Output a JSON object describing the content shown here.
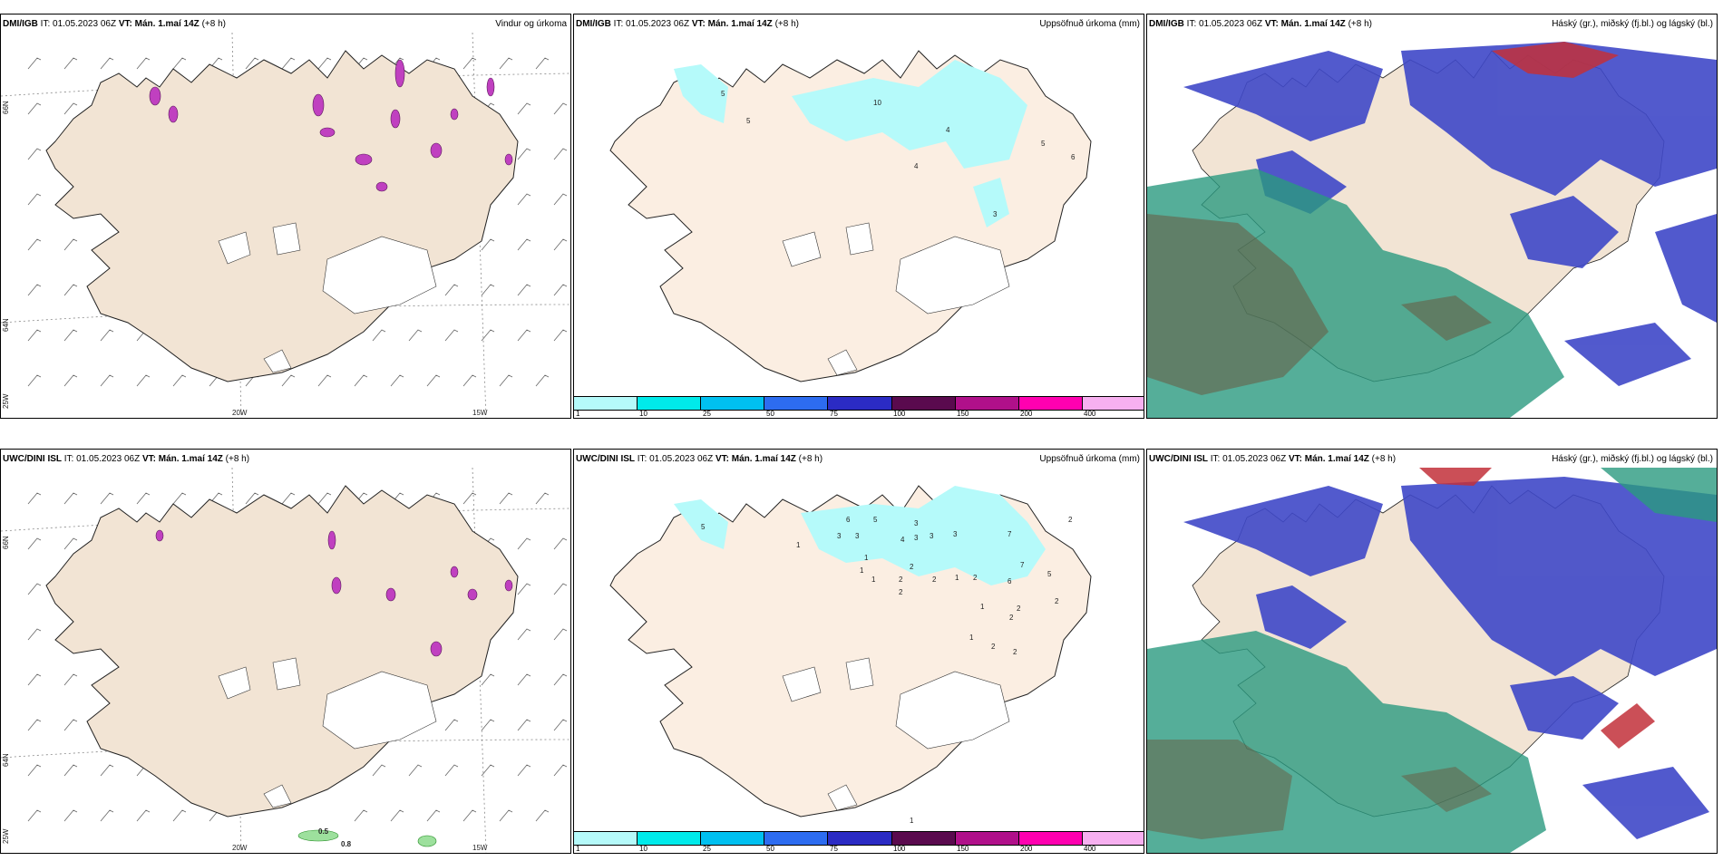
{
  "issue_time": "IT: 01.05.2023 06Z",
  "valid_time": "VT: Mán. 1.maí 14Z",
  "lead": "(+8 h)",
  "titles": {
    "wind": "Vindur og úrkoma",
    "accum": "Uppsöfnuð úrkoma (mm)",
    "cloud": "Háský (gr.), miðský (fj.bl.) og lágský (bl.)"
  },
  "rows": [
    {
      "model": "DMI/IGB",
      "accum_labels": [
        "5",
        "5",
        "10",
        "4",
        "4",
        "5",
        "6",
        "3"
      ],
      "wind_contours": []
    },
    {
      "model": "UWC/DINI ISL",
      "accum_labels": [
        "5",
        "6",
        "3",
        "5",
        "1",
        "3",
        "4",
        "3",
        "3",
        "7",
        "1",
        "3",
        "2",
        "3",
        "1",
        "1",
        "2",
        "2",
        "2",
        "1",
        "2",
        "7",
        "6",
        "5",
        "2",
        "2",
        "1",
        "2",
        "1",
        "2",
        "2",
        "2",
        "1"
      ],
      "wind_contours": [
        "0.5",
        "0.8"
      ]
    }
  ],
  "graticule": {
    "lat": [
      "66N",
      "64N"
    ],
    "lon": [
      "25W",
      "20W",
      "15W"
    ]
  },
  "legend": {
    "ticks": [
      "1",
      "10",
      "25",
      "50",
      "75",
      "100",
      "150",
      "200",
      "400"
    ],
    "colors": [
      "#b5fafa",
      "#00eaea",
      "#00c0f0",
      "#2d6cf0",
      "#2b2bc4",
      "#5a0a4e",
      "#b0108a",
      "#ff00b0",
      "#f7b0f0"
    ]
  },
  "colors": {
    "land": "#f2e4d4",
    "land_accum": "#fbeee2",
    "cloud_high": "#3f48c8",
    "cloud_mid": "#2a9a80",
    "cloud_low": "#c2303a",
    "precip_magenta": "#c040c0"
  }
}
